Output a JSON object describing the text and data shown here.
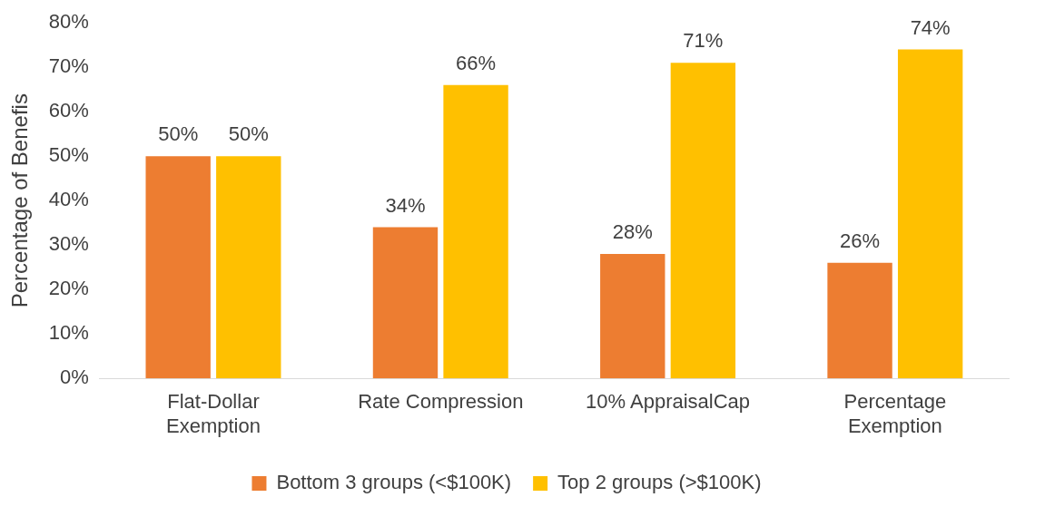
{
  "chart_data": {
    "type": "bar",
    "ylabel": "Percentage of Benefis",
    "categories": [
      "Flat-Dollar Exemption",
      "Rate Compression",
      "10% AppraisalCap",
      "Percentage Exemption"
    ],
    "series": [
      {
        "name": "Bottom 3 groups (<$100K)",
        "color": "#ed7d31",
        "values": [
          50,
          34,
          28,
          26
        ],
        "value_labels": [
          "50%",
          "34%",
          "28%",
          "26%"
        ]
      },
      {
        "name": "Top 2 groups (>$100K)",
        "color": "#ffc000",
        "values": [
          50,
          66,
          71,
          74
        ],
        "value_labels": [
          "50%",
          "66%",
          "71%",
          "74%"
        ]
      }
    ],
    "ylim": [
      0,
      80
    ],
    "yticks": [
      {
        "value": 0,
        "label": "0%"
      },
      {
        "value": 10,
        "label": "10%"
      },
      {
        "value": 20,
        "label": "20%"
      },
      {
        "value": 30,
        "label": "30%"
      },
      {
        "value": 40,
        "label": "40%"
      },
      {
        "value": 50,
        "label": "50%"
      },
      {
        "value": 60,
        "label": "60%"
      },
      {
        "value": 70,
        "label": "70%"
      },
      {
        "value": 80,
        "label": "80%"
      }
    ],
    "grid": false,
    "legend": "bottom"
  }
}
